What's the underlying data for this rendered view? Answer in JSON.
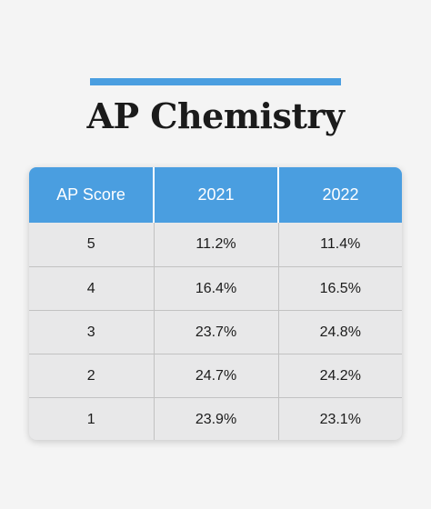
{
  "header": {
    "accent_color": "#4a9ee0",
    "title": "AP Chemistry"
  },
  "table": {
    "header_color": "#4a9ee0",
    "columns": [
      "AP Score",
      "2021",
      "2022"
    ],
    "rows": [
      {
        "score": "5",
        "y2021": "11.2%",
        "y2022": "11.4%"
      },
      {
        "score": "4",
        "y2021": "16.4%",
        "y2022": "16.5%"
      },
      {
        "score": "3",
        "y2021": "23.7%",
        "y2022": "24.8%"
      },
      {
        "score": "2",
        "y2021": "24.7%",
        "y2022": "24.2%"
      },
      {
        "score": "1",
        "y2021": "23.9%",
        "y2022": "23.1%"
      }
    ]
  }
}
